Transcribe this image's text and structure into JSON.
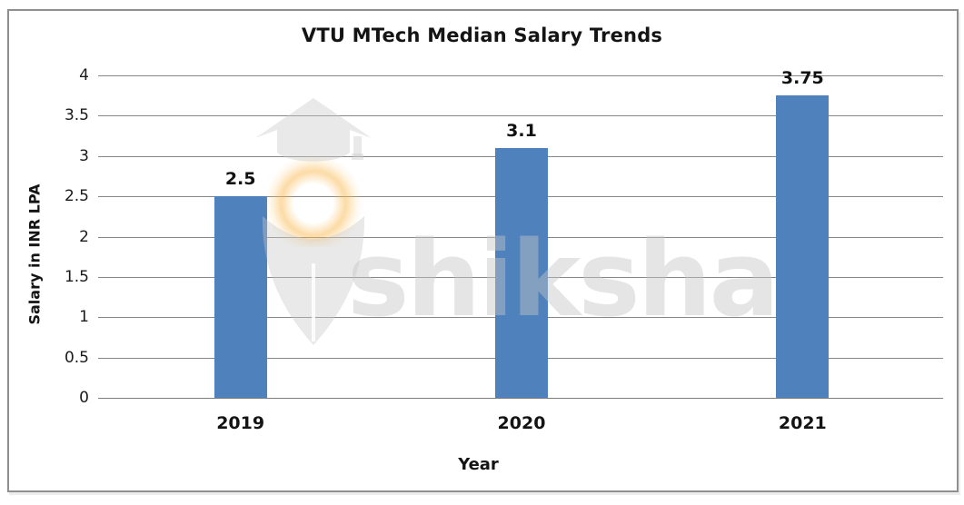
{
  "window": {
    "background_color": "#ffffff",
    "frame_border_color": "#8f8f8f"
  },
  "chart_data": {
    "type": "bar",
    "title": "VTU MTech Median Salary Trends",
    "xlabel": "Year",
    "ylabel": "Salary in INR LPA",
    "categories": [
      "2019",
      "2020",
      "2021"
    ],
    "values": [
      2.5,
      3.1,
      3.75
    ],
    "value_labels": [
      "2.5",
      "3.1",
      "3.75"
    ],
    "ylim": [
      0,
      4
    ],
    "ytick_step": 0.5,
    "ytick_labels": [
      "0",
      "0.5",
      "1",
      "1.5",
      "2",
      "2.5",
      "3",
      "3.5",
      "4"
    ],
    "grid": true,
    "gridline_color": "#878787",
    "bar_color": "#4f81bd",
    "text_color": "#141414",
    "legend_position": "none"
  },
  "watermark": {
    "text": "shiksha",
    "logo_icon": "shiksha-graduation-cap-pen-logo",
    "text_color": "rgba(197,197,197,0.45)",
    "accent_color": "#f9b74c"
  }
}
